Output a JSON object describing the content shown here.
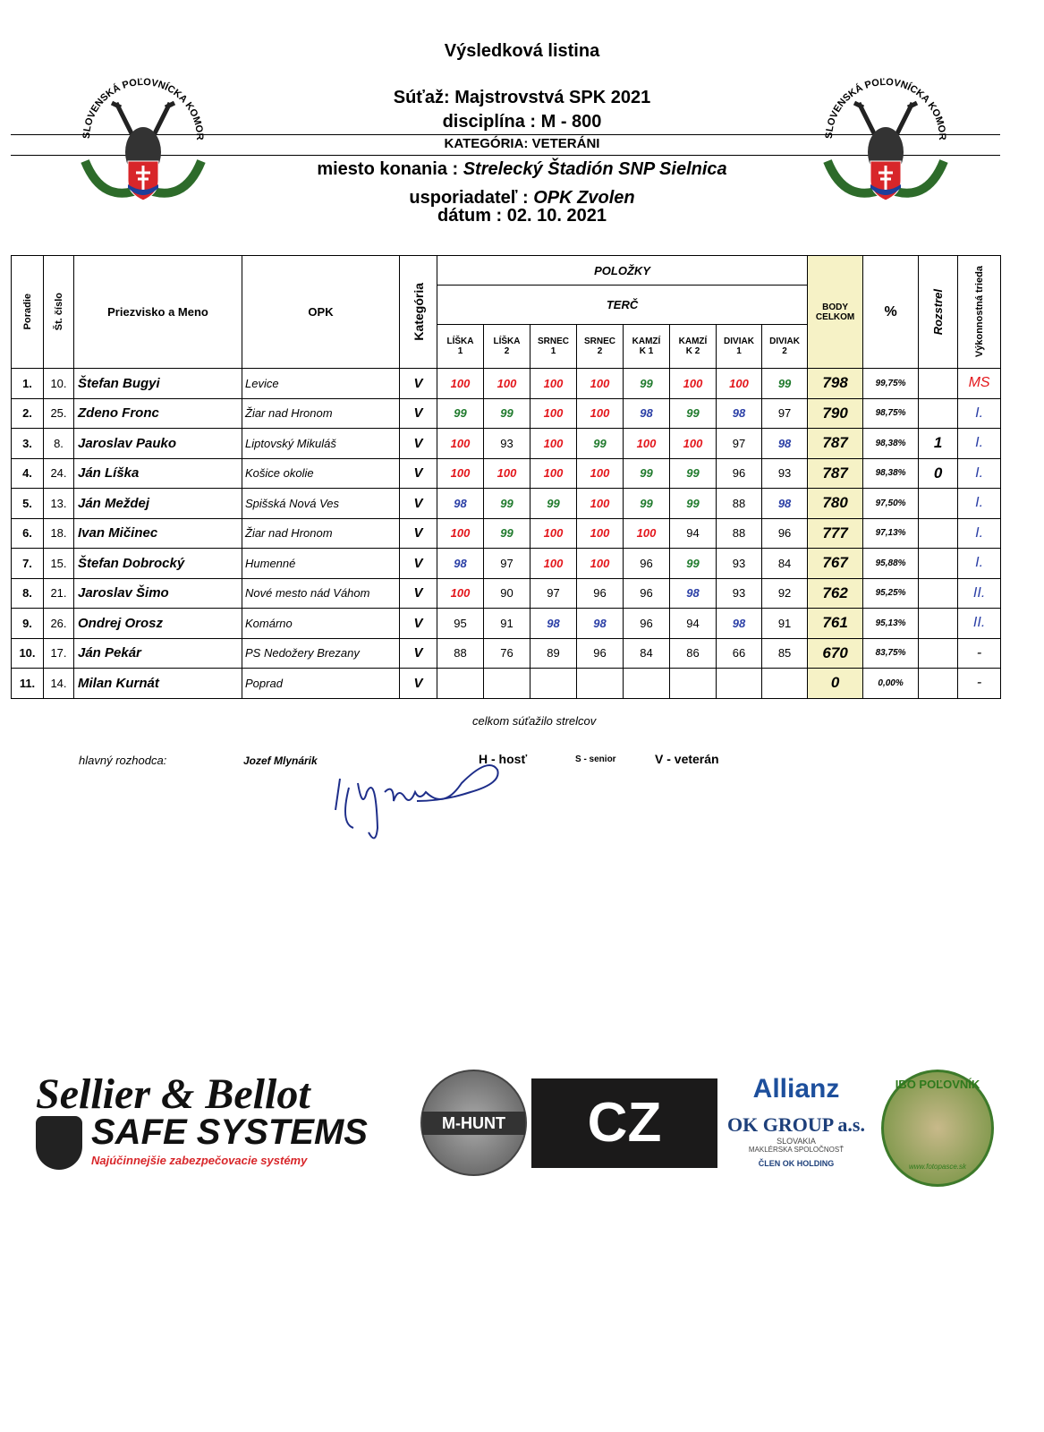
{
  "header": {
    "title": "Výsledková listina",
    "competition": "Súťaž: Majstrovstvá SPK 2021",
    "discipline": "disciplína : M - 800",
    "category": "KATEGÓRIA: VETERÁNI",
    "venue_label": "miesto konania :",
    "venue": "Strelecký Štadión SNP Sielnica",
    "organizer_label": "usporiadateľ :",
    "organizer": "OPK Zvolen",
    "date": "dátum : 02. 10. 2021",
    "logo_text": "SLOVENSKÁ POĽOVNÍCKA KOMORA"
  },
  "table": {
    "headers": {
      "rank": "Poradie",
      "number": "Št. číslo",
      "name": "Priezvisko a Meno",
      "opk": "OPK",
      "category": "Kategória",
      "items": "POLOŽKY",
      "target": "TERČ",
      "targets": [
        {
          "name": "LÍŠKA",
          "number": "1"
        },
        {
          "name": "LÍŠKA",
          "number": "2"
        },
        {
          "name": "SRNEC",
          "number": "1"
        },
        {
          "name": "SRNEC",
          "number": "2"
        },
        {
          "name": "KAMZÍ",
          "number": "K 1"
        },
        {
          "name": "KAMZÍ",
          "number": "K 2"
        },
        {
          "name": "DIVIAK",
          "number": "1"
        },
        {
          "name": "DIVIAK",
          "number": "2"
        }
      ],
      "total": "BODY CELKOM",
      "percent": "%",
      "shootoff": "Rozstrel",
      "class": "Výkonnostná trieda"
    },
    "score_colors": {
      "100": "#e3161b",
      "99": "#1f7a2c",
      "98": "#2b3fa6"
    },
    "class_colors": {
      "MS": "#e3161b",
      "I.": "#2b3fa6",
      "II.": "#2b3fa6"
    },
    "rows": [
      {
        "rank": "1.",
        "number": "10.",
        "name": "Štefan Bugyi",
        "opk": "Levice",
        "category": "V",
        "scores": [
          100,
          100,
          100,
          100,
          99,
          100,
          100,
          99
        ],
        "total": 798,
        "percent": "99,75%",
        "shootoff": null,
        "class": "MS"
      },
      {
        "rank": "2.",
        "number": "25.",
        "name": "Zdeno Fronc",
        "opk": "Žiar nad Hronom",
        "category": "V",
        "scores": [
          99,
          99,
          100,
          100,
          98,
          99,
          98,
          97
        ],
        "total": 790,
        "percent": "98,75%",
        "shootoff": null,
        "class": "I."
      },
      {
        "rank": "3.",
        "number": "8.",
        "name": "Jaroslav Pauko",
        "opk": "Liptovský Mikuláš",
        "category": "V",
        "scores": [
          100,
          93,
          100,
          99,
          100,
          100,
          97,
          98
        ],
        "total": 787,
        "percent": "98,38%",
        "shootoff": 1,
        "class": "I."
      },
      {
        "rank": "4.",
        "number": "24.",
        "name": "Ján Líška",
        "opk": "Košice okolie",
        "category": "V",
        "scores": [
          100,
          100,
          100,
          100,
          99,
          99,
          96,
          93
        ],
        "total": 787,
        "percent": "98,38%",
        "shootoff": 0,
        "class": "I."
      },
      {
        "rank": "5.",
        "number": "13.",
        "name": "Ján Meždej",
        "opk": "Spišská Nová Ves",
        "category": "V",
        "scores": [
          98,
          99,
          99,
          100,
          99,
          99,
          88,
          98
        ],
        "total": 780,
        "percent": "97,50%",
        "shootoff": null,
        "class": "I."
      },
      {
        "rank": "6.",
        "number": "18.",
        "name": "Ivan Mičinec",
        "opk": "Žiar nad Hronom",
        "category": "V",
        "scores": [
          100,
          99,
          100,
          100,
          100,
          94,
          88,
          96
        ],
        "total": 777,
        "percent": "97,13%",
        "shootoff": null,
        "class": "I."
      },
      {
        "rank": "7.",
        "number": "15.",
        "name": "Štefan Dobrocký",
        "opk": "Humenné",
        "category": "V",
        "scores": [
          98,
          97,
          100,
          100,
          96,
          99,
          93,
          84
        ],
        "total": 767,
        "percent": "95,88%",
        "shootoff": null,
        "class": "I."
      },
      {
        "rank": "8.",
        "number": "21.",
        "name": "Jaroslav Šimo",
        "opk": "Nové mesto nád Váhom",
        "category": "V",
        "scores": [
          100,
          90,
          97,
          96,
          96,
          98,
          93,
          92
        ],
        "total": 762,
        "percent": "95,25%",
        "shootoff": null,
        "class": "II."
      },
      {
        "rank": "9.",
        "number": "26.",
        "name": "Ondrej Orosz",
        "opk": "Komárno",
        "category": "V",
        "scores": [
          95,
          91,
          98,
          98,
          96,
          94,
          98,
          91
        ],
        "total": 761,
        "percent": "95,13%",
        "shootoff": null,
        "class": "II."
      },
      {
        "rank": "10.",
        "number": "17.",
        "name": "Ján Pekár",
        "opk": "PS Nedožery Brezany",
        "category": "V",
        "scores": [
          88,
          76,
          89,
          96,
          84,
          86,
          66,
          85
        ],
        "total": 670,
        "percent": "83,75%",
        "shootoff": null,
        "class": "-"
      },
      {
        "rank": "11.",
        "number": "14.",
        "name": "Milan Kurnát",
        "opk": "Poprad",
        "category": "V",
        "scores": [
          null,
          null,
          null,
          null,
          null,
          null,
          null,
          null
        ],
        "total": 0,
        "percent": "0,00%",
        "shootoff": null,
        "class": "-"
      }
    ]
  },
  "footer": {
    "total_shooters": "celkom súťažilo strelcov",
    "referee_label": "hlavný rozhodca:",
    "referee": "Jozef Mlynárik",
    "legend_guest": "H - hosť",
    "legend_senior": "S - senior",
    "legend_veteran": "V - veterán"
  },
  "sponsors": {
    "sb": "Sellier & Bellot",
    "safe": "SAFE SYSTEMS",
    "safe_tagline": "Najúčinnejšie zabezpečovacie systémy",
    "mhunt": "M-HUNT",
    "cz": "CZ",
    "allianz": "Allianz",
    "ok": "OK GROUP a.s.",
    "ok_country": "SLOVAKIA",
    "ok_sub": "MAKLÉRSKA SPOLOČNOSŤ",
    "ok_member": "ČLEN OK HOLDING",
    "ibo": "IBO POĽOVNÍK",
    "ibo_web": "www.fotopasce.sk"
  }
}
